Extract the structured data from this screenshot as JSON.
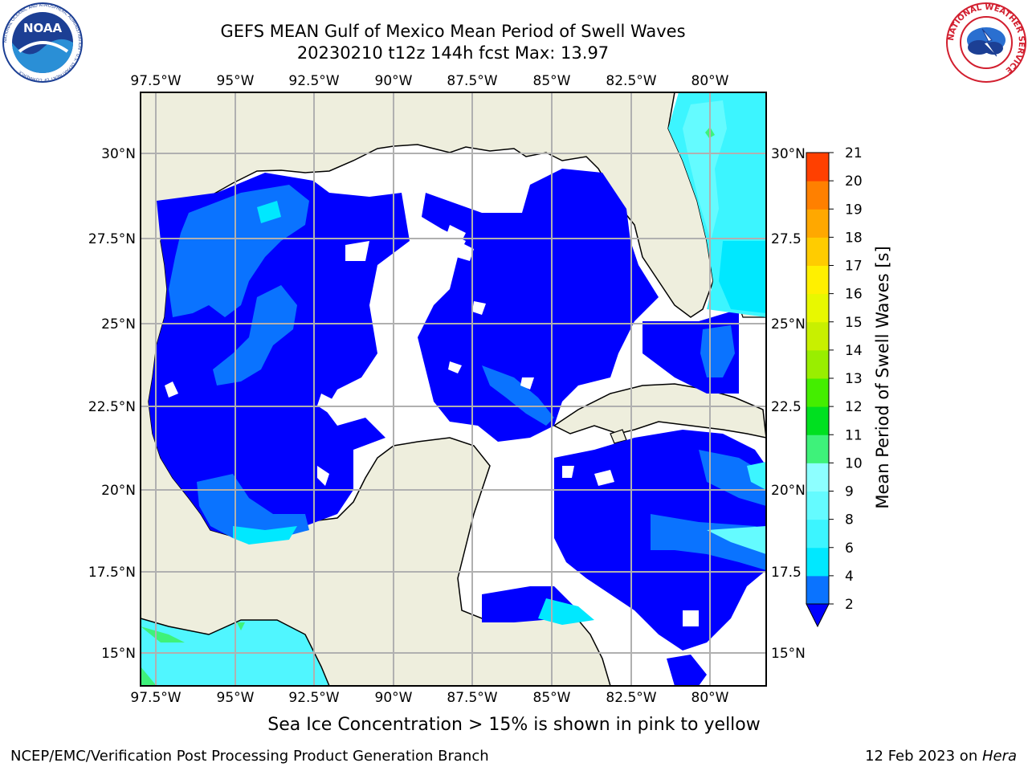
{
  "header": {
    "title_line1": "GEFS MEAN Gulf of Mexico Mean Period of Swell Waves",
    "title_line2": "20230210 t12z 144h fcst   Max: 13.97"
  },
  "logos": {
    "left": {
      "name": "noaa-logo",
      "text": "NOAA",
      "ring_text": "NATIONAL OCEANIC AND ATMOSPHERIC ADMINISTRATION · U.S. DEPARTMENT OF COMMERCE"
    },
    "right": {
      "name": "nws-logo",
      "ring_text": "NATIONAL WEATHER SERVICE"
    }
  },
  "map": {
    "lon_ticks": [
      "97.5°W",
      "95°W",
      "92.5°W",
      "90°W",
      "87.5°W",
      "85°W",
      "82.5°W",
      "80°W"
    ],
    "lat_ticks_left": [
      "30°N",
      "27.5°N",
      "25°N",
      "22.5°N",
      "20°N",
      "17.5°N",
      "15°N"
    ],
    "lat_ticks_right": [
      "30°N",
      "27.5",
      "25°N",
      "22.5",
      "20°N",
      "17.5",
      "15°N"
    ],
    "land_color": "#eeeedd",
    "grid_color": "#b0b0b0"
  },
  "colorbar": {
    "label": "Mean Period of Swell Waves [s]",
    "ticks": [
      "2",
      "4",
      "6",
      "8",
      "9",
      "10",
      "11",
      "12",
      "13",
      "14",
      "15",
      "16",
      "17",
      "18",
      "19",
      "20",
      "21"
    ],
    "colors": [
      "#0a73ff",
      "#00e8ff",
      "#3cf5ff",
      "#64fbff",
      "#8dffff",
      "#3ef27a",
      "#00e020",
      "#44ee00",
      "#99ee00",
      "#c8f000",
      "#e8f800",
      "#fff000",
      "#ffcc00",
      "#ffa800",
      "#ff8000",
      "#ff4000",
      "#ff1a00",
      "#ff0000"
    ],
    "extend_color": "#0000ff"
  },
  "note": "Sea Ice Concentration > 15% is shown in pink to yellow",
  "footer": {
    "left": "NCEP/EMC/Verification Post Processing Product Generation Branch",
    "right_prefix": "12 Feb 2023 on ",
    "right_machine": "Hera"
  }
}
